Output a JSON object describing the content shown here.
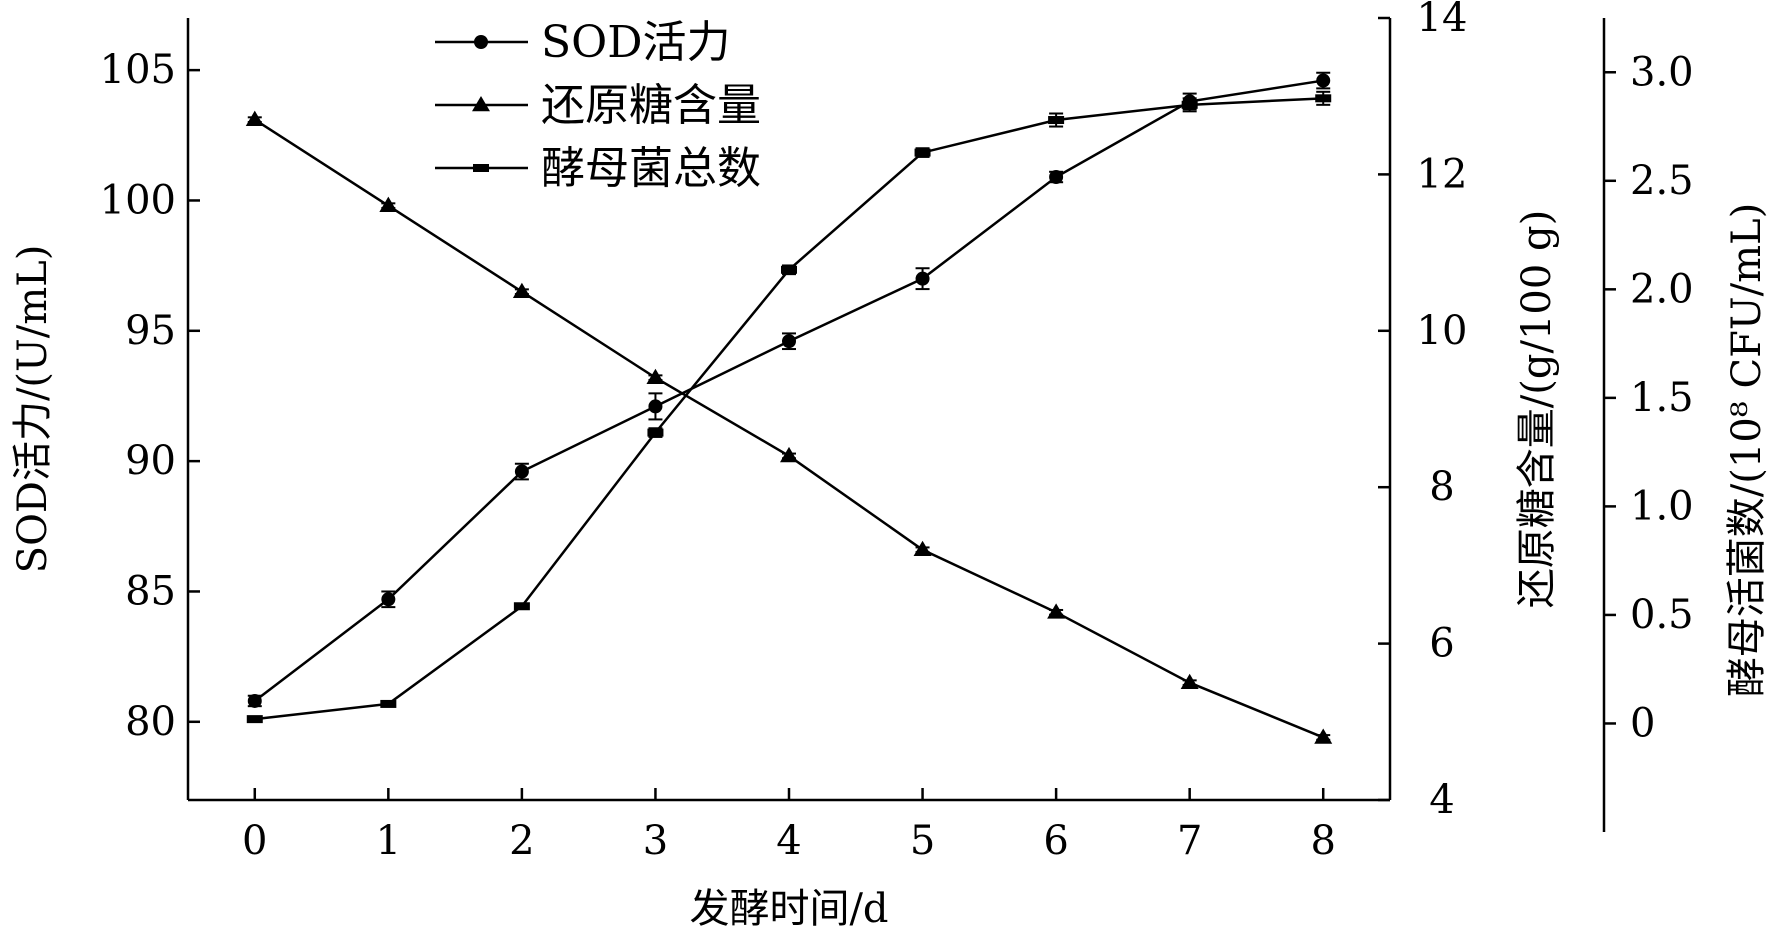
{
  "chart_data": {
    "type": "line",
    "x": [
      0,
      1,
      2,
      3,
      4,
      5,
      6,
      7,
      8
    ],
    "xticks": [
      "0",
      "1",
      "2",
      "3",
      "4",
      "5",
      "6",
      "7",
      "8"
    ],
    "xlabel": "发酵时间/d",
    "xlim": [
      -0.5,
      8.5
    ],
    "axes": {
      "left": {
        "label": "SOD活力/(U/mL)",
        "lim": [
          77,
          107
        ],
        "ticks": [
          "80",
          "85",
          "90",
          "95",
          "100",
          "105"
        ]
      },
      "right1": {
        "label": "还原糖含量/(g/100 g)",
        "lim": [
          4,
          14
        ],
        "ticks": [
          "4",
          "6",
          "8",
          "10",
          "12",
          "14"
        ]
      },
      "right2": {
        "label": "酵母活菌数/(10⁸ CFU/mL)",
        "lim": [
          -0.5,
          3.25
        ],
        "ticks": [
          "0",
          "0.5",
          "1.0",
          "1.5",
          "2.0",
          "2.5",
          "3.0"
        ]
      }
    },
    "series": [
      {
        "name": "SOD活力",
        "axis": "left",
        "marker": "circle",
        "values": [
          80.8,
          84.7,
          89.6,
          92.1,
          94.6,
          97.0,
          100.9,
          103.8,
          104.6
        ],
        "errors": [
          0.2,
          0.3,
          0.3,
          0.5,
          0.3,
          0.4,
          0.2,
          0.3,
          0.3
        ]
      },
      {
        "name": "还原糖含量",
        "axis": "right1",
        "marker": "triangle",
        "values": [
          12.7,
          11.6,
          10.5,
          9.4,
          8.4,
          7.2,
          6.4,
          5.5,
          4.8
        ],
        "errors": [
          0.03,
          0.03,
          0.03,
          0.03,
          0.03,
          0.03,
          0.03,
          0.03,
          0.03
        ]
      },
      {
        "name": "酵母菌总数",
        "axis": "right2",
        "marker": "square",
        "values": [
          0.02,
          0.09,
          0.54,
          1.34,
          2.09,
          2.63,
          2.78,
          2.85,
          2.88
        ],
        "errors": [
          0.01,
          0.01,
          0.01,
          0.02,
          0.02,
          0.02,
          0.03,
          0.03,
          0.03
        ]
      }
    ],
    "legend": {
      "position": "top-left"
    },
    "grid": false
  }
}
